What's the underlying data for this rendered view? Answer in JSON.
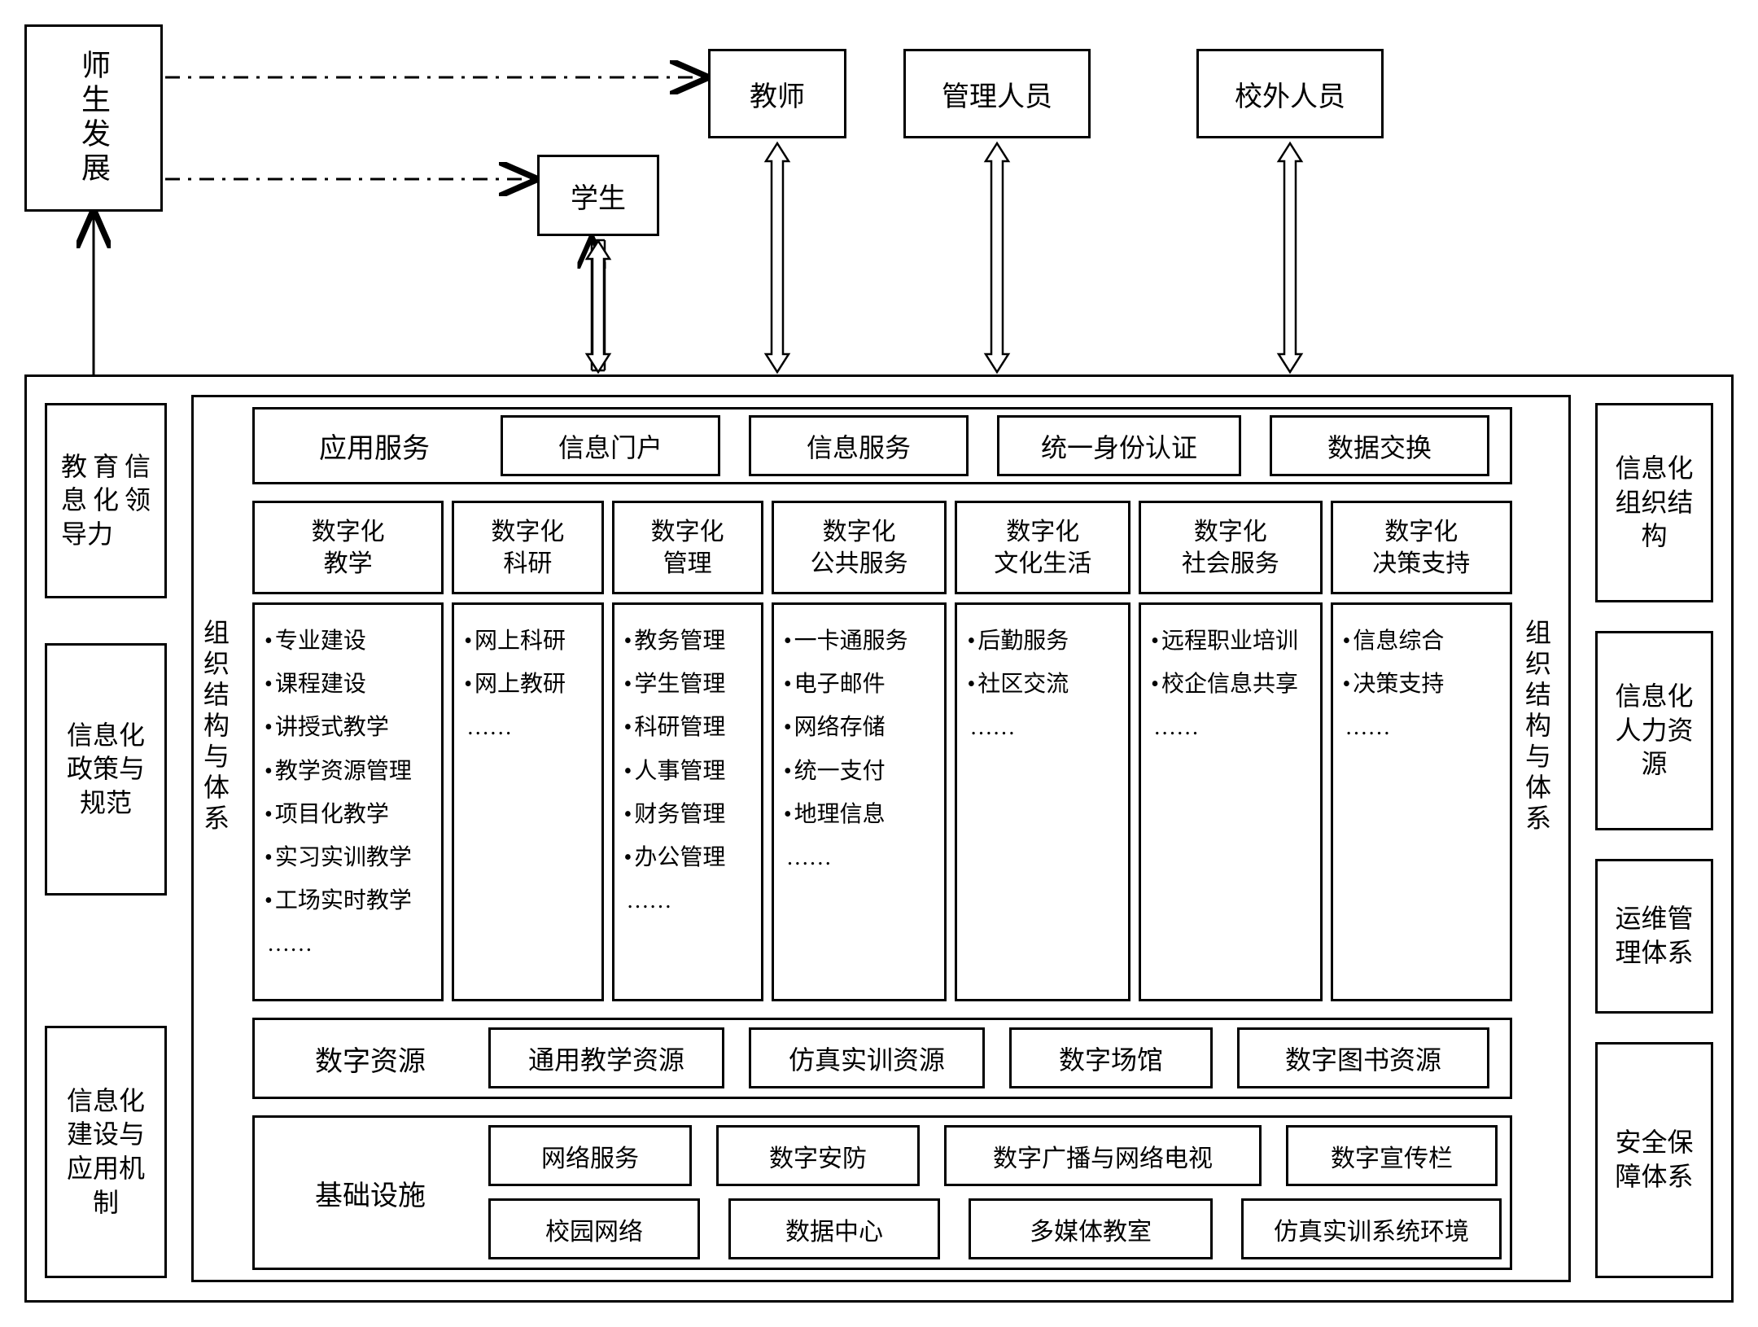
{
  "style": {
    "font_family": "SimSun serif",
    "font_size_main": 32,
    "font_size_items": 28,
    "border_width": 3,
    "border_color": "#000000",
    "background": "#ffffff",
    "text_color": "#000000",
    "line_dash_pattern": "18 10 4 10",
    "arrow_head": "open-triangle"
  },
  "top": {
    "source": "师生发展",
    "actors": [
      "学生",
      "教师",
      "管理人员",
      "校外人员"
    ]
  },
  "left_panels": [
    "教育信息化领导力",
    "信息化政策与规范",
    "信息化建设与应用机制"
  ],
  "right_panels": [
    "信息化组织结构",
    "信息化人力资源",
    "运维管理体系",
    "安全保障体系"
  ],
  "inner_vertical_left": "组织结构与体系",
  "inner_vertical_right": "组织结构与体系",
  "row_app": {
    "header": "应用服务",
    "cells": [
      "信息门户",
      "信息服务",
      "统一身份认证",
      "数据交换"
    ]
  },
  "row_digital_headers": [
    "数字化\n教学",
    "数字化\n科研",
    "数字化\n管理",
    "数字化\n公共服务",
    "数字化\n文化生活",
    "数字化\n社会服务",
    "数字化\n决策支持"
  ],
  "row_digital_items": [
    [
      "专业建设",
      "课程建设",
      "讲授式教学",
      "教学资源管理",
      "项目化教学",
      "实习实训教学",
      "工场实时教学"
    ],
    [
      "网上科研",
      "网上教研"
    ],
    [
      "教务管理",
      "学生管理",
      "科研管理",
      "人事管理",
      "财务管理",
      "办公管理"
    ],
    [
      "一卡通服务",
      "电子邮件",
      "网络存储",
      "统一支付",
      "地理信息"
    ],
    [
      "后勤服务",
      "社区交流"
    ],
    [
      "远程职业培训",
      "校企信息共享"
    ],
    [
      "信息综合",
      "决策支持"
    ]
  ],
  "more": "……",
  "row_res": {
    "header": "数字资源",
    "cells": [
      "通用教学资源",
      "仿真实训资源",
      "数字场馆",
      "数字图书资源"
    ]
  },
  "row_infra": {
    "header": "基础设施",
    "row1": [
      "网络服务",
      "数字安防",
      "数字广播与网络电视",
      "数字宣传栏"
    ],
    "row2": [
      "校园网络",
      "数据中心",
      "多媒体教室",
      "仿真实训系统环境"
    ]
  }
}
